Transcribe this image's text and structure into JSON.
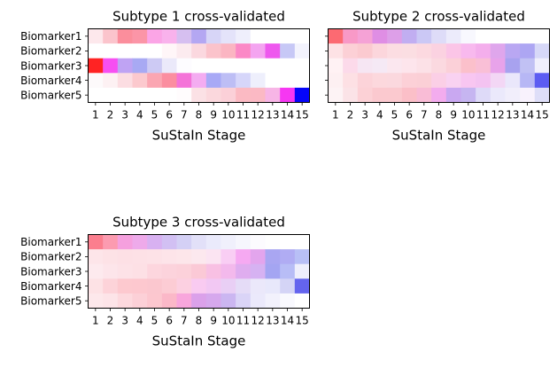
{
  "chart_data": [
    {
      "type": "heatmap",
      "title": "Subtype 1 cross-validated",
      "xlabel": "SuStaIn Stage",
      "ylabel": "",
      "rows": [
        "Biomarker1",
        "Biomarker2",
        "Biomarker3",
        "Biomarker4",
        "Biomarker5"
      ],
      "columns": [
        "1",
        "2",
        "3",
        "4",
        "5",
        "6",
        "7",
        "8",
        "9",
        "10",
        "11",
        "12",
        "13",
        "14",
        "15"
      ],
      "row_labels_visible": true,
      "cells": [
        [
          "#fde8ec",
          "#fbc4cc",
          "#fb8e9c",
          "#fb95a7",
          "#fba5e6",
          "#f9b2ec",
          "#d6bff0",
          "#b4a7f2",
          "#d7d5f7",
          "#e4e3fa",
          "#efeffc",
          "#ffffff",
          "#ffffff",
          "#ffffff",
          "#ffffff"
        ],
        [
          "#ffffff",
          "#ffffff",
          "#ffffff",
          "#ffffff",
          "#ffffff",
          "#fff6f8",
          "#fcebef",
          "#fbd8df",
          "#fbc3cb",
          "#fbb5c2",
          "#fb88c6",
          "#f4a4f0",
          "#ee58ee",
          "#c7c8f6",
          "#f3f3fd"
        ],
        [
          "#ff2323",
          "#f74ff2",
          "#bfa3f3",
          "#a8a9f3",
          "#cdcaf4",
          "#ebe9fa",
          "#fdfcff",
          "#ffffff",
          "#ffffff",
          "#ffffff",
          "#ffffff",
          "#ffffff",
          "#ffffff",
          "#ffffff",
          "#ffffff"
        ],
        [
          "#fdfafb",
          "#fdf1f3",
          "#fcdde2",
          "#fcc9ce",
          "#fba6b2",
          "#fb8ea0",
          "#f473d8",
          "#f4acf1",
          "#a8a9f6",
          "#bdbef5",
          "#d6d6fa",
          "#eeeffc",
          "#ffffff",
          "#ffffff",
          "#ffffff"
        ],
        [
          "#ffffff",
          "#ffffff",
          "#ffffff",
          "#ffffff",
          "#ffffff",
          "#ffffff",
          "#fffcfd",
          "#fbe1e5",
          "#fbd8dd",
          "#fbd0d8",
          "#fbbac3",
          "#fbb9c4",
          "#f7b5e6",
          "#f637f2",
          "#0505fa"
        ]
      ]
    },
    {
      "type": "heatmap",
      "title": "Subtype 2 cross-validated",
      "xlabel": "SuStaIn Stage",
      "ylabel": "",
      "rows": [
        "Biomarker1",
        "Biomarker2",
        "Biomarker3",
        "Biomarker4",
        "Biomarker5"
      ],
      "columns": [
        "1",
        "2",
        "3",
        "4",
        "5",
        "6",
        "7",
        "8",
        "9",
        "10",
        "11",
        "12",
        "13",
        "14",
        "15"
      ],
      "row_labels_visible": false,
      "cells": [
        [
          "#fc6a72",
          "#f899c7",
          "#f5a2d6",
          "#df8ee4",
          "#dd9fe8",
          "#c1aef1",
          "#cbc8f5",
          "#dedcf8",
          "#ecebfb",
          "#f8f8fe",
          "#ffffff",
          "#ffffff",
          "#ffffff",
          "#ffffff",
          "#ffffff"
        ],
        [
          "#fde2e5",
          "#fcd0d6",
          "#fbcad0",
          "#fcd6dc",
          "#fcdde2",
          "#fbdee2",
          "#fcd9e0",
          "#fbd2e1",
          "#fbc5e7",
          "#f8b9ee",
          "#f4aeec",
          "#dfa6ec",
          "#b9a7f2",
          "#ada6f3",
          "#d7d8f8"
        ],
        [
          "#fff2f4",
          "#fcdaea",
          "#f6e6f3",
          "#f5e9f5",
          "#fbe7ef",
          "#fde5ec",
          "#fce1e7",
          "#fbd9e0",
          "#fbd0d8",
          "#fbc0cb",
          "#f9bfd6",
          "#e8a3ea",
          "#a8a2ef",
          "#c1c1f4",
          "#f0effc"
        ],
        [
          "#fdf0f2",
          "#fde0e4",
          "#fcd3d9",
          "#fcd8dd",
          "#fbd8de",
          "#fcd0d7",
          "#fbcfd6",
          "#fbcfe6",
          "#f9d2f1",
          "#f8c6f1",
          "#f4c3f1",
          "#f3d7f5",
          "#eae7fb",
          "#b7b7f5",
          "#5c5cf2"
        ],
        [
          "#fdf3f5",
          "#fbe3e7",
          "#fcd1d6",
          "#fbc9cf",
          "#fbc9cf",
          "#fbbfc8",
          "#f9bcd6",
          "#f3acee",
          "#c9a8f1",
          "#c6b5f1",
          "#dedaf8",
          "#ebe9fb",
          "#f1eefb",
          "#f8f2fd",
          "#dedef8"
        ]
      ]
    },
    {
      "type": "heatmap",
      "title": "Subtype 3 cross-validated",
      "xlabel": "SuStaIn Stage",
      "ylabel": "",
      "rows": [
        "Biomarker1",
        "Biomarker2",
        "Biomarker3",
        "Biomarker4",
        "Biomarker5"
      ],
      "columns": [
        "1",
        "2",
        "3",
        "4",
        "5",
        "6",
        "7",
        "8",
        "9",
        "10",
        "11",
        "12",
        "13",
        "14",
        "15"
      ],
      "row_labels_visible": true,
      "cells": [
        [
          "#fb7e8e",
          "#fc9bb0",
          "#f5a0de",
          "#eeaaea",
          "#d8b1f1",
          "#d2c0f3",
          "#d4d0f5",
          "#e2e0f8",
          "#eaeafb",
          "#f0f0fc",
          "#f6f6fd",
          "#fcfbfe",
          "#fefefe",
          "#ffffff",
          "#ffffff"
        ],
        [
          "#fde5e9",
          "#fde2e6",
          "#fde0e5",
          "#fde1e6",
          "#fde2e7",
          "#fde4e9",
          "#fde6ea",
          "#fce8ee",
          "#fbe4f2",
          "#f9cef4",
          "#f6a9f2",
          "#e3a5ed",
          "#a9a6f2",
          "#b0acf3",
          "#b8bff6"
        ],
        [
          "#fdeaee",
          "#fde5ea",
          "#fde2e7",
          "#fde0e5",
          "#fdd6de",
          "#fcd3dc",
          "#fcd1da",
          "#fbc9d6",
          "#f8c0e3",
          "#f3b9ec",
          "#dfadef",
          "#d6b2f2",
          "#a4a5f2",
          "#b8bdf6",
          "#efeffc"
        ],
        [
          "#fde2e5",
          "#fdd3d9",
          "#fdc9cf",
          "#fdc8cf",
          "#fbc7cf",
          "#fcccd4",
          "#fcd0e1",
          "#f9cbf1",
          "#f2c8f3",
          "#e9cff5",
          "#e5dcf7",
          "#ebe8fa",
          "#e8e8fb",
          "#d4d4f6",
          "#6464ee"
        ],
        [
          "#fde8eb",
          "#fde4e8",
          "#fdd9de",
          "#fcd0d7",
          "#fcc7cf",
          "#fbb8c8",
          "#f8a6dc",
          "#dba1ea",
          "#d6a8ed",
          "#cbb6f1",
          "#dad4f7",
          "#ebe9fb",
          "#f2f1fc",
          "#f9f9fe",
          "#ffffff"
        ]
      ]
    }
  ]
}
